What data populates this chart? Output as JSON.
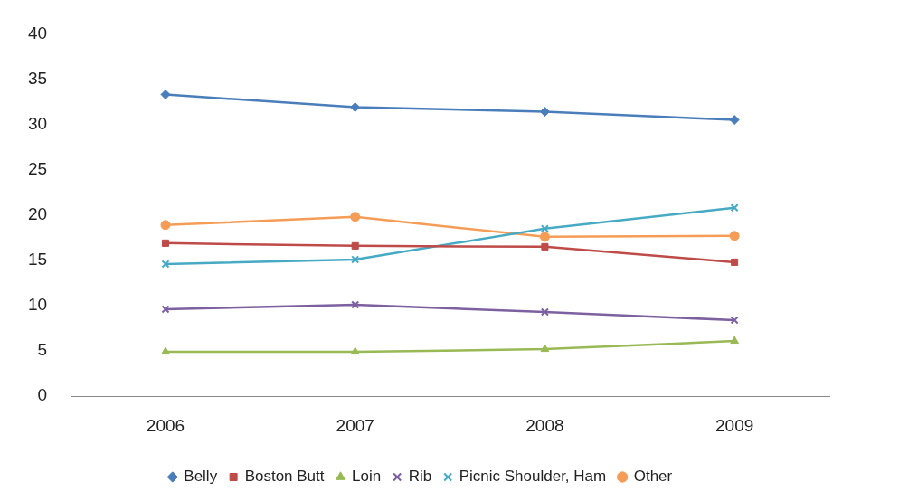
{
  "chart_data": {
    "type": "line",
    "categories": [
      "2006",
      "2007",
      "2008",
      "2009"
    ],
    "series": [
      {
        "name": "Belly",
        "color": "#4a7ebb",
        "marker": "diamond",
        "values": [
          33.3,
          31.9,
          31.4,
          30.5
        ]
      },
      {
        "name": "Boston Butt",
        "color": "#be4b48",
        "marker": "square",
        "values": [
          16.9,
          16.6,
          16.5,
          14.8
        ]
      },
      {
        "name": "Loin",
        "color": "#98b954",
        "marker": "triangle",
        "values": [
          4.9,
          4.9,
          5.2,
          6.1
        ]
      },
      {
        "name": "Rib",
        "color": "#7d60a0",
        "marker": "cross",
        "values": [
          9.6,
          10.1,
          9.3,
          8.4
        ]
      },
      {
        "name": "Picnic Shoulder, Ham",
        "color": "#46aac5",
        "marker": "cross",
        "values": [
          14.6,
          15.1,
          18.5,
          20.8
        ]
      },
      {
        "name": "Other",
        "color": "#f59d56",
        "marker": "circle",
        "values": [
          18.9,
          19.8,
          17.6,
          17.7
        ]
      }
    ],
    "ylim": [
      0,
      40
    ],
    "yticks": [
      0,
      5,
      10,
      15,
      20,
      25,
      30,
      35,
      40
    ],
    "grid": false,
    "legend": "bottom",
    "line_style": "solid"
  }
}
